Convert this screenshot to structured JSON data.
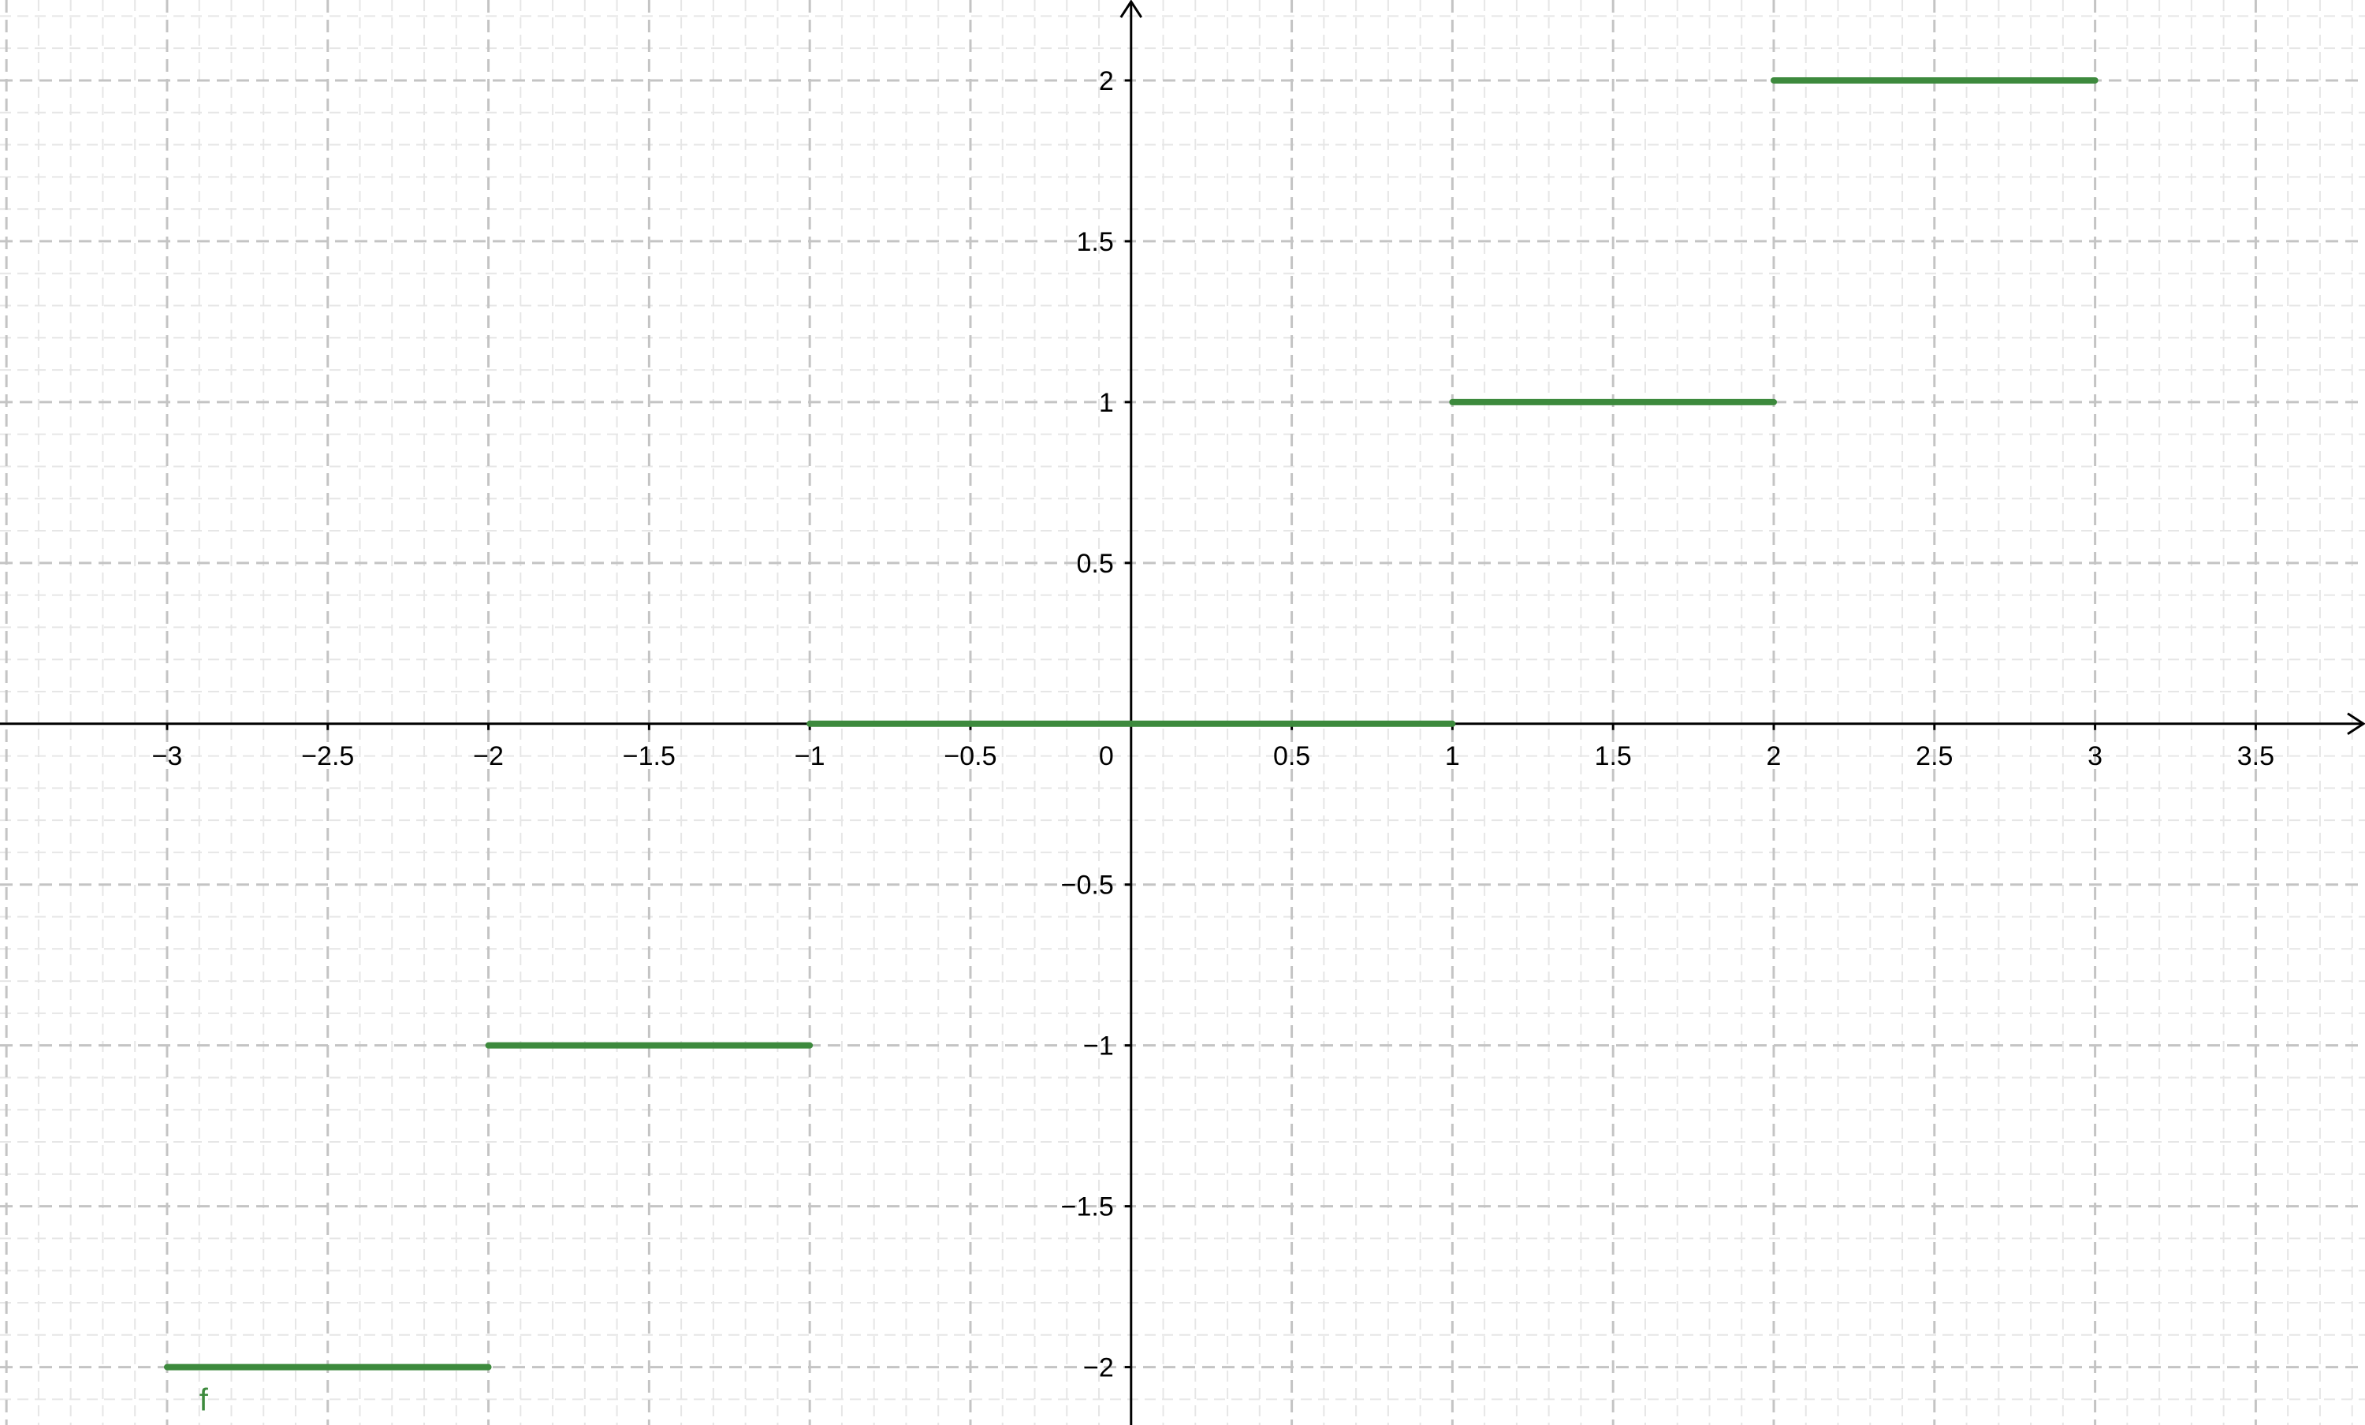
{
  "chart_data": {
    "type": "line",
    "title": "",
    "xlabel": "",
    "ylabel": "",
    "xlim": [
      -3.52,
      3.84
    ],
    "ylim": [
      -2.18,
      2.25
    ],
    "grid": true,
    "minor_grid": true,
    "x_ticks": [
      {
        "value": -3,
        "label": "−3"
      },
      {
        "value": -2.5,
        "label": "−2.5"
      },
      {
        "value": -2,
        "label": "−2"
      },
      {
        "value": -1.5,
        "label": "−1.5"
      },
      {
        "value": -1,
        "label": "−1"
      },
      {
        "value": -0.5,
        "label": "−0.5"
      },
      {
        "value": 0.5,
        "label": "0.5"
      },
      {
        "value": 1,
        "label": "1"
      },
      {
        "value": 1.5,
        "label": "1.5"
      },
      {
        "value": 2,
        "label": "2"
      },
      {
        "value": 2.5,
        "label": "2.5"
      },
      {
        "value": 3,
        "label": "3"
      },
      {
        "value": 3.5,
        "label": "3.5"
      }
    ],
    "y_ticks": [
      {
        "value": 2,
        "label": "2"
      },
      {
        "value": 1.5,
        "label": "1.5"
      },
      {
        "value": 1,
        "label": "1"
      },
      {
        "value": 0.5,
        "label": "0.5"
      },
      {
        "value": -0.5,
        "label": "−0.5"
      },
      {
        "value": -1,
        "label": "−1"
      },
      {
        "value": -1.5,
        "label": "−1.5"
      },
      {
        "value": -2,
        "label": "−2"
      }
    ],
    "origin_label": "0",
    "series": [
      {
        "name": "f",
        "color": "#3d8a3d",
        "segments": [
          {
            "x0": -3,
            "x1": -2,
            "y": -2
          },
          {
            "x0": -2,
            "x1": -1,
            "y": -1
          },
          {
            "x0": -1,
            "x1": 1,
            "y": 0
          },
          {
            "x0": 1,
            "x1": 2,
            "y": 1
          },
          {
            "x0": 2,
            "x1": 3,
            "y": 2
          }
        ]
      }
    ],
    "function_label": {
      "text": "f",
      "x": -2.9,
      "y": -2.1
    }
  }
}
